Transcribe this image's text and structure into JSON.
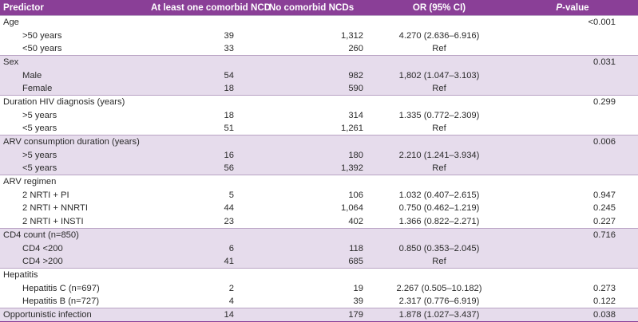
{
  "header": {
    "predictor": "Predictor",
    "comorbid": "At least one comorbid NCD",
    "no_comorbid": "No comorbid NCDs",
    "or": "OR (95% CI)",
    "pvalue_italic": "P",
    "pvalue_rest": "-value"
  },
  "groups": [
    {
      "label": "Age",
      "p": "<0.001",
      "shade": false,
      "rows": [
        {
          "label": ">50 years",
          "n1": "39",
          "n2": "1,312",
          "or": "4.270 (2.636–6.916)",
          "p": ""
        },
        {
          "label": "<50 years",
          "n1": "33",
          "n2": "260",
          "or": "Ref",
          "p": ""
        }
      ]
    },
    {
      "label": "Sex",
      "p": "0.031",
      "shade": true,
      "rows": [
        {
          "label": "Male",
          "n1": "54",
          "n2": "982",
          "or": "1,802 (1.047–3.103)",
          "p": ""
        },
        {
          "label": "Female",
          "n1": "18",
          "n2": "590",
          "or": "Ref",
          "p": ""
        }
      ]
    },
    {
      "label": "Duration HIV diagnosis (years)",
      "p": "0.299",
      "shade": false,
      "rows": [
        {
          "label": ">5 years",
          "n1": "18",
          "n2": "314",
          "or": "1.335 (0.772–2.309)",
          "p": ""
        },
        {
          "label": "<5 years",
          "n1": "51",
          "n2": "1,261",
          "or": "Ref",
          "p": ""
        }
      ]
    },
    {
      "label": "ARV consumption duration (years)",
      "p": "0.006",
      "shade": true,
      "rows": [
        {
          "label": ">5 years",
          "n1": "16",
          "n2": "180",
          "or": "2.210 (1.241–3.934)",
          "p": ""
        },
        {
          "label": "<5 years",
          "n1": "56",
          "n2": "1,392",
          "or": "Ref",
          "p": ""
        }
      ]
    },
    {
      "label": "ARV regimen",
      "p": "",
      "shade": false,
      "rows": [
        {
          "label": "2 NRTI + PI",
          "n1": "5",
          "n2": "106",
          "or": "1.032 (0.407–2.615)",
          "p": "0.947"
        },
        {
          "label": "2 NRTI + NNRTI",
          "n1": "44",
          "n2": "1,064",
          "or": "0.750 (0.462–1.219)",
          "p": "0.245"
        },
        {
          "label": "2 NRTI + INSTI",
          "n1": "23",
          "n2": "402",
          "or": "1.366 (0.822–2.271)",
          "p": "0.227"
        }
      ]
    },
    {
      "label": "CD4 count (n=850)",
      "p": "0.716",
      "shade": true,
      "rows": [
        {
          "label": "CD4 <200",
          "n1": "6",
          "n2": "118",
          "or": "0.850 (0.353–2.045)",
          "p": ""
        },
        {
          "label": "CD4 >200",
          "n1": "41",
          "n2": "685",
          "or": "Ref",
          "p": ""
        }
      ]
    },
    {
      "label": "Hepatitis",
      "p": "",
      "shade": false,
      "rows": [
        {
          "label": "Hepatitis C (n=697)",
          "n1": "2",
          "n2": "19",
          "or": "2.267 (0.505–10.182)",
          "p": "0.273"
        },
        {
          "label": "Hepatitis B (n=727)",
          "n1": "4",
          "n2": "39",
          "or": "2.317 (0.776–6.919)",
          "p": "0.122"
        }
      ]
    }
  ],
  "final_row": {
    "label": "Opportunistic infection",
    "n1": "14",
    "n2": "179",
    "or": "1.878 (1.027–3.437)",
    "p": "0.038",
    "shade": true
  }
}
